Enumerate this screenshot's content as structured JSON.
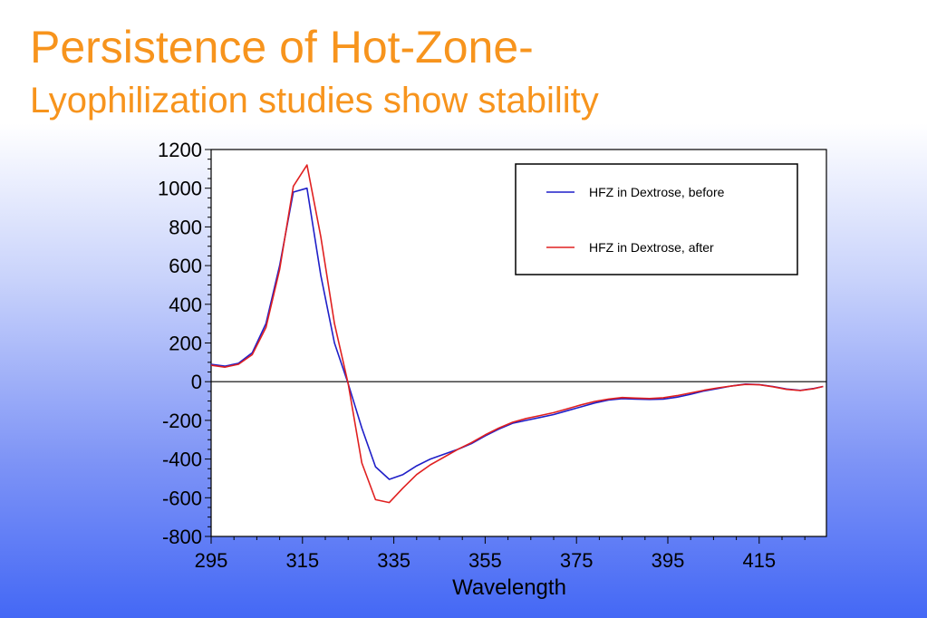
{
  "slide": {
    "title": "Persistence of Hot-Zone-",
    "subtitle": "Lyophilization studies show stability"
  },
  "chart_data": {
    "type": "line",
    "xlabel": "Wavelength",
    "ylabel": "",
    "xlim": [
      295,
      429
    ],
    "ylim": [
      -800,
      1200
    ],
    "xticks": [
      295,
      315,
      335,
      355,
      375,
      395,
      415
    ],
    "yticks": [
      1200,
      1000,
      800,
      600,
      400,
      200,
      0,
      -200,
      -400,
      -600,
      -800
    ],
    "grid": false,
    "zero_line": true,
    "legend_position": "top-right",
    "series": [
      {
        "name": "HFZ in Dextrose, before",
        "color": "#1f1fc8",
        "x": [
          295,
          298,
          301,
          304,
          307,
          310,
          313,
          316,
          319,
          322,
          325,
          328,
          331,
          334,
          337,
          340,
          343,
          346,
          349,
          352,
          355,
          358,
          361,
          364,
          367,
          370,
          373,
          376,
          379,
          382,
          385,
          388,
          391,
          394,
          397,
          400,
          403,
          406,
          409,
          412,
          415,
          418,
          421,
          424,
          427,
          429
        ],
        "y": [
          90,
          80,
          95,
          150,
          300,
          600,
          980,
          1000,
          550,
          200,
          -10,
          -240,
          -440,
          -505,
          -480,
          -435,
          -400,
          -375,
          -350,
          -320,
          -280,
          -245,
          -215,
          -200,
          -185,
          -170,
          -150,
          -130,
          -110,
          -95,
          -88,
          -90,
          -92,
          -90,
          -80,
          -65,
          -48,
          -35,
          -22,
          -12,
          -15,
          -25,
          -38,
          -45,
          -35,
          -25
        ]
      },
      {
        "name": "HFZ in Dextrose, after",
        "color": "#e02020",
        "x": [
          295,
          298,
          301,
          304,
          307,
          310,
          313,
          316,
          319,
          322,
          325,
          328,
          331,
          334,
          337,
          340,
          343,
          346,
          349,
          352,
          355,
          358,
          361,
          364,
          367,
          370,
          373,
          376,
          379,
          382,
          385,
          388,
          391,
          394,
          397,
          400,
          403,
          406,
          409,
          412,
          415,
          418,
          421,
          424,
          427,
          429
        ],
        "y": [
          85,
          75,
          90,
          140,
          280,
          580,
          1010,
          1120,
          750,
          300,
          -10,
          -420,
          -610,
          -625,
          -550,
          -480,
          -430,
          -390,
          -350,
          -315,
          -275,
          -240,
          -210,
          -190,
          -175,
          -160,
          -140,
          -120,
          -102,
          -90,
          -82,
          -85,
          -87,
          -83,
          -72,
          -58,
          -44,
          -32,
          -22,
          -14,
          -16,
          -26,
          -40,
          -46,
          -36,
          -25
        ]
      }
    ]
  }
}
